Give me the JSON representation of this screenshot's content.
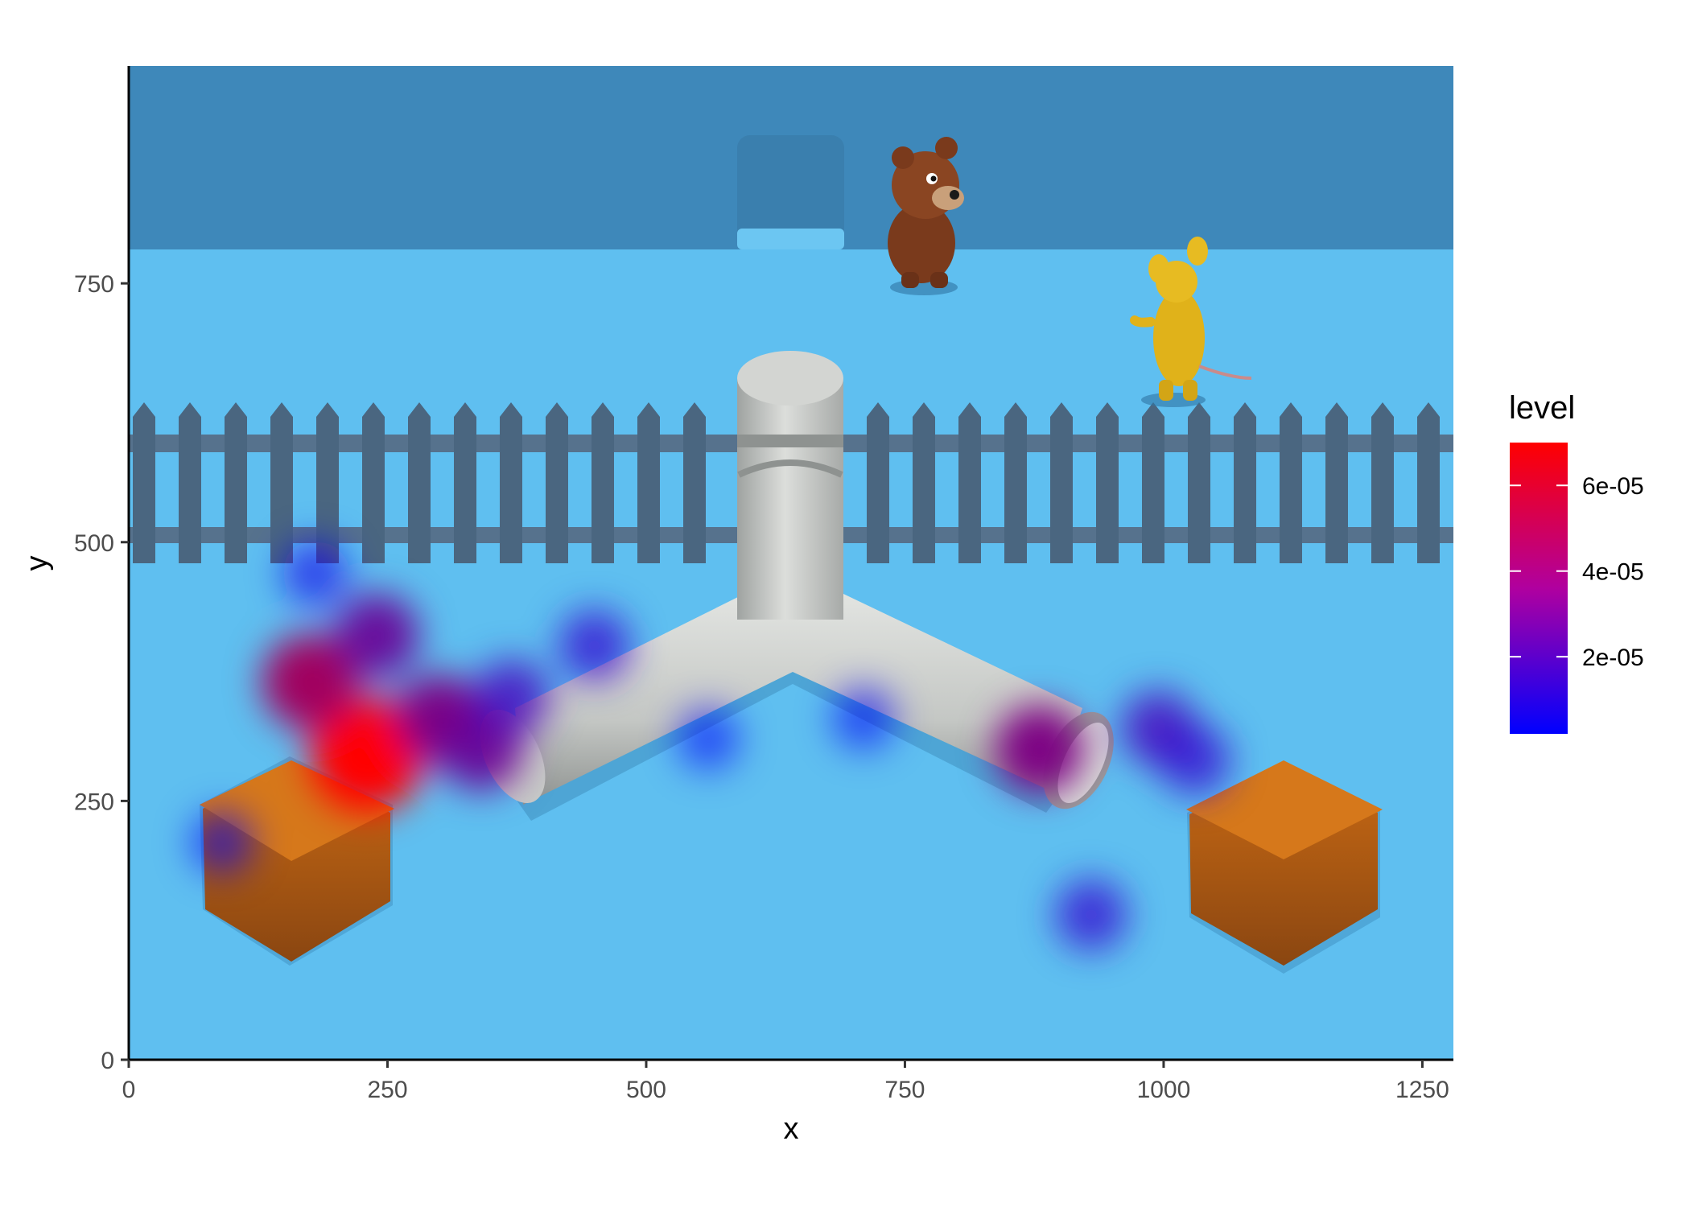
{
  "chart_data": {
    "type": "heatmap",
    "title": "",
    "xlabel": "x",
    "ylabel": "y",
    "xlim": [
      0,
      1280
    ],
    "ylim": [
      0,
      960
    ],
    "x_ticks": [
      0,
      250,
      500,
      750,
      1000,
      1250
    ],
    "y_ticks": [
      0,
      250,
      500,
      750
    ],
    "grid": false,
    "background": "game-scene screenshot: blue floor, dark-blue back wall with doorway, grey picket fence, grey Y-shaped tube, two orange crates, brown bear and yellow mouse characters",
    "legend": {
      "title": "level",
      "position": "right",
      "min": 2e-06,
      "max": 7e-05,
      "ticks": [
        2e-05,
        4e-05,
        6e-05
      ],
      "tick_labels": [
        "2e-05",
        "4e-05",
        "6e-05"
      ],
      "colors": {
        "low": "#0000ff",
        "high": "#ff0000"
      }
    },
    "density_hotspots": [
      {
        "x": 230,
        "y": 295,
        "level": 7e-05
      },
      {
        "x": 175,
        "y": 365,
        "level": 4.5e-05
      },
      {
        "x": 240,
        "y": 410,
        "level": 3e-05
      },
      {
        "x": 300,
        "y": 330,
        "level": 3.5e-05
      },
      {
        "x": 340,
        "y": 300,
        "level": 3e-05
      },
      {
        "x": 370,
        "y": 350,
        "level": 2e-05
      },
      {
        "x": 180,
        "y": 470,
        "level": 8e-06
      },
      {
        "x": 450,
        "y": 400,
        "level": 1.5e-05
      },
      {
        "x": 880,
        "y": 300,
        "level": 3.5e-05
      },
      {
        "x": 995,
        "y": 320,
        "level": 2e-05
      },
      {
        "x": 1030,
        "y": 290,
        "level": 1.5e-05
      },
      {
        "x": 930,
        "y": 140,
        "level": 1.5e-05
      },
      {
        "x": 710,
        "y": 330,
        "level": 5e-06
      },
      {
        "x": 560,
        "y": 310,
        "level": 4e-06
      },
      {
        "x": 90,
        "y": 210,
        "level": 5e-06
      }
    ]
  }
}
